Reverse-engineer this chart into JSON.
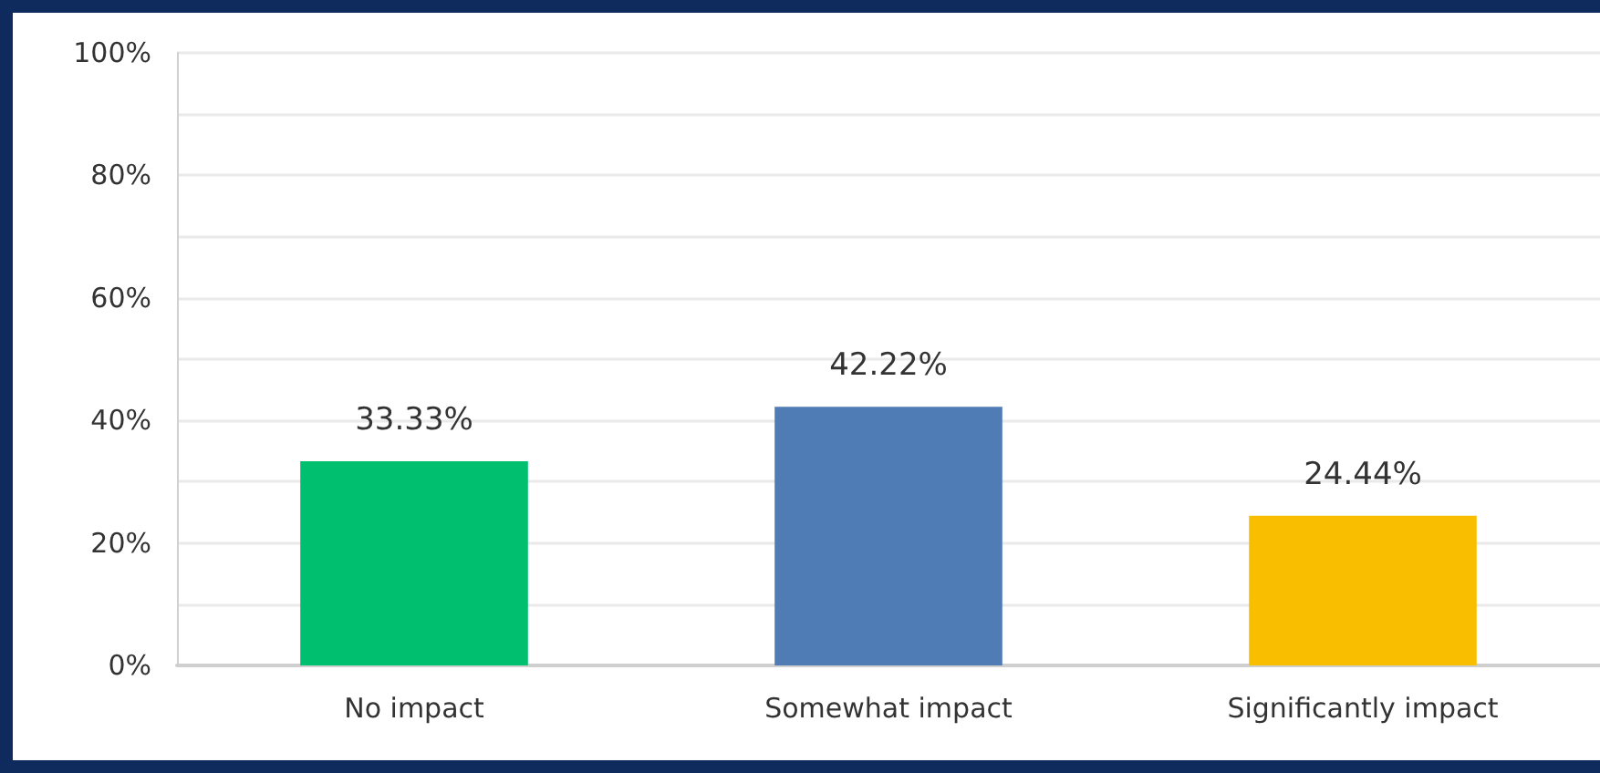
{
  "chart_data": {
    "type": "bar",
    "categories": [
      "No impact",
      "Somewhat impact",
      "Significantly impact"
    ],
    "values": [
      33.33,
      42.22,
      24.44
    ],
    "colors": [
      "#00bf6f",
      "#507cb5",
      "#f9be00"
    ],
    "value_labels": [
      "33.33%",
      "42.22%",
      "24.44%"
    ],
    "ylim": [
      0,
      100
    ],
    "yticks": [
      {
        "value": 0,
        "label": "0%"
      },
      {
        "value": 10,
        "label": null
      },
      {
        "value": 20,
        "label": "20%"
      },
      {
        "value": 30,
        "label": null
      },
      {
        "value": 40,
        "label": "40%"
      },
      {
        "value": 50,
        "label": null
      },
      {
        "value": 60,
        "label": "60%"
      },
      {
        "value": 70,
        "label": null
      },
      {
        "value": 80,
        "label": "80%"
      },
      {
        "value": 90,
        "label": null
      },
      {
        "value": 100,
        "label": "100%"
      }
    ],
    "grid": "y"
  }
}
